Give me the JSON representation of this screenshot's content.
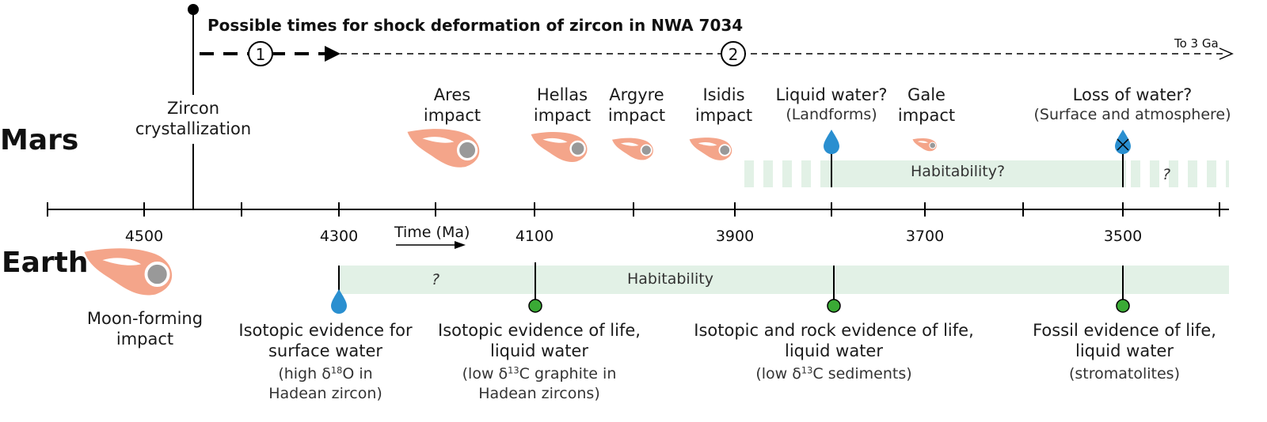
{
  "header": {
    "title": "Possible times for shock deformation of zircon in NWA 7034",
    "marker_1": "1",
    "marker_2": "2",
    "to_label": "To 3 Ga"
  },
  "rows": {
    "mars": "Mars",
    "earth": "Earth"
  },
  "axis": {
    "label": "Time (Ma)",
    "ticks": [
      "4500",
      "4300",
      "4100",
      "3900",
      "3700",
      "3500"
    ]
  },
  "mars": {
    "zircon_1": "Zircon",
    "zircon_2": "crystallization",
    "impacts": [
      {
        "name": "Ares",
        "word": "impact"
      },
      {
        "name": "Hellas",
        "word": "impact"
      },
      {
        "name": "Argyre",
        "word": "impact"
      },
      {
        "name": "Isidis",
        "word": "impact"
      },
      {
        "name": "Gale",
        "word": "impact"
      }
    ],
    "water_1": "Liquid water?",
    "water_2": "(Landforms)",
    "loss_1": "Loss of water?",
    "loss_2": "(Surface and atmosphere)",
    "habitability": "Habitability?",
    "question": "?"
  },
  "earth": {
    "habitability": "Habitability",
    "question": "?",
    "moon_1": "Moon-forming",
    "moon_2": "impact",
    "ev1": {
      "l1": "Isotopic evidence for",
      "l2": "surface water",
      "s1a": "(high δ",
      "s1sup": "18",
      "s1b": "O in",
      "s2": "Hadean zircon)"
    },
    "ev2": {
      "l1": "Isotopic evidence of life,",
      "l2": "liquid water",
      "s1a": "(low δ",
      "s1sup": "13",
      "s1b": "C graphite in",
      "s2": "Hadean zircons)"
    },
    "ev3": {
      "l1": "Isotopic and rock evidence of life,",
      "l2": "liquid water",
      "s1a": "(low δ",
      "s1sup": "13",
      "s1b": "C sediments)"
    },
    "ev4": {
      "l1": "Fossil evidence of life,",
      "l2": "liquid water",
      "s1": "(stromatolites)"
    }
  },
  "colors": {
    "impactor": "#f4a58a",
    "impactor_core": "#999999",
    "band": "#e2f1e6",
    "water_drop": "#2a8fd0",
    "life_dot": "#3aaa35"
  }
}
